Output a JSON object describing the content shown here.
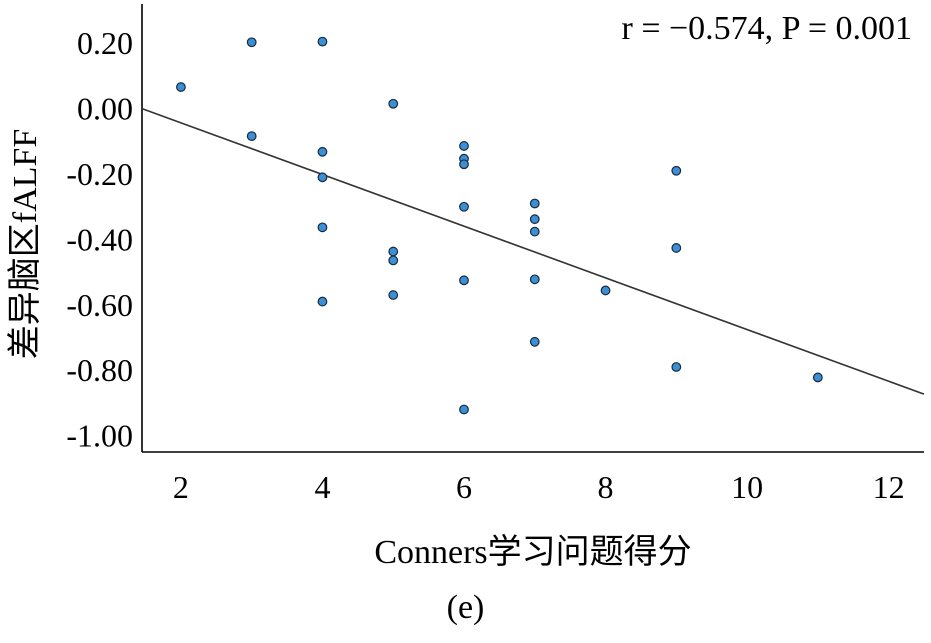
{
  "chart_data": {
    "type": "scatter",
    "xlabel": "Conners学习问题得分",
    "ylabel": "差异脑区fALFF",
    "annotation": "r = −0.574, P = 0.001",
    "xlim": [
      1.45,
      12.5
    ],
    "ylim": [
      -1.05,
      0.32
    ],
    "x_ticks": [
      2,
      4,
      6,
      8,
      10,
      12
    ],
    "y_ticks": [
      0.2,
      0.0,
      -0.2,
      -0.4,
      -0.6,
      -0.8,
      -1.0
    ],
    "y_tick_labels": [
      "0.20",
      "0.00",
      "-0.20",
      "-0.40",
      "-0.60",
      "-0.80",
      "-1.00"
    ],
    "grid": false,
    "point_color": "#3a8fd6",
    "point_edge_color": "#1a2a3a",
    "fit_line": {
      "x": [
        1.45,
        12.5
      ],
      "y": [
        0.0,
        -0.873
      ],
      "color": "#333333"
    },
    "points": [
      {
        "x": 2,
        "y": 0.066
      },
      {
        "x": 3,
        "y": 0.203
      },
      {
        "x": 3,
        "y": -0.084
      },
      {
        "x": 4,
        "y": 0.205
      },
      {
        "x": 4,
        "y": -0.132
      },
      {
        "x": 4,
        "y": -0.21
      },
      {
        "x": 4,
        "y": -0.363
      },
      {
        "x": 4,
        "y": -0.59
      },
      {
        "x": 5,
        "y": 0.015
      },
      {
        "x": 5,
        "y": -0.437
      },
      {
        "x": 5,
        "y": -0.464
      },
      {
        "x": 5,
        "y": -0.57
      },
      {
        "x": 6,
        "y": -0.114
      },
      {
        "x": 6,
        "y": -0.153
      },
      {
        "x": 6,
        "y": -0.17
      },
      {
        "x": 6,
        "y": -0.3
      },
      {
        "x": 6,
        "y": -0.525
      },
      {
        "x": 6,
        "y": -0.92
      },
      {
        "x": 7,
        "y": -0.29
      },
      {
        "x": 7,
        "y": -0.338
      },
      {
        "x": 7,
        "y": -0.376
      },
      {
        "x": 7,
        "y": -0.522
      },
      {
        "x": 7,
        "y": -0.713
      },
      {
        "x": 8,
        "y": -0.556
      },
      {
        "x": 9,
        "y": -0.19
      },
      {
        "x": 9,
        "y": -0.426
      },
      {
        "x": 9,
        "y": -0.79
      },
      {
        "x": 11,
        "y": -0.822
      }
    ]
  },
  "caption": "(e)"
}
